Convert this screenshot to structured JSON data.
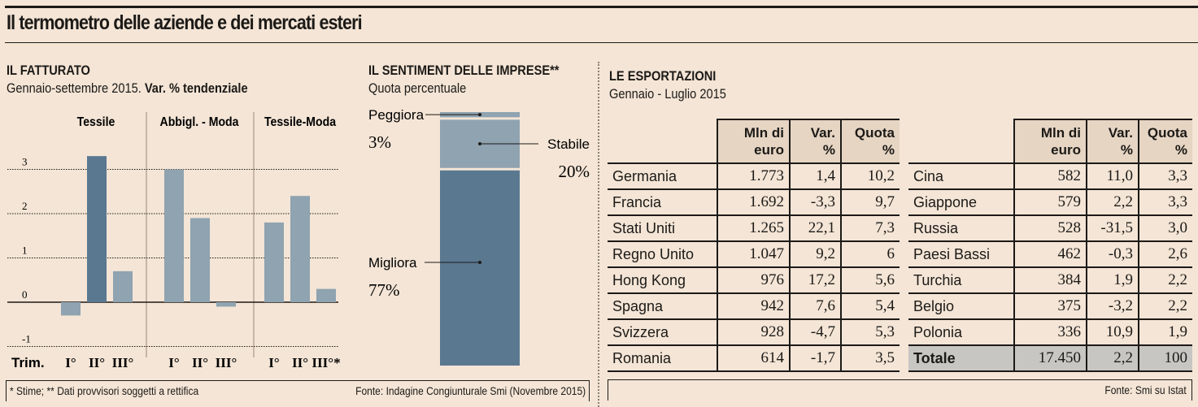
{
  "title": "Il termometro delle aziende e dei mercati esteri",
  "fatturato": {
    "heading": "IL FATTURATO",
    "subtitle_plain": "Gennaio-settembre 2015. ",
    "subtitle_bold": "Var. % tendenziale",
    "trim_label": "Trim."
  },
  "sentiment": {
    "heading": "IL SENTIMENT DELLE IMPRESE**",
    "subtitle": "Quota percentuale"
  },
  "esportazioni": {
    "heading": "LE ESPORTAZIONI",
    "subtitle": "Gennaio - Luglio 2015",
    "columns": [
      "Mln di euro",
      "Var. %",
      "Quota %"
    ],
    "col_lines": [
      [
        "Mln di",
        "euro"
      ],
      [
        "Var.",
        "%"
      ],
      [
        "Quota",
        "%"
      ]
    ],
    "left_rows": [
      {
        "country": "Germania",
        "mln": "1.773",
        "var": "1,4",
        "quota": "10,2"
      },
      {
        "country": "Francia",
        "mln": "1.692",
        "var": "-3,3",
        "quota": "9,7"
      },
      {
        "country": "Stati Uniti",
        "mln": "1.265",
        "var": "22,1",
        "quota": "7,3"
      },
      {
        "country": "Regno Unito",
        "mln": "1.047",
        "var": "9,2",
        "quota": "6"
      },
      {
        "country": "Hong Kong",
        "mln": "976",
        "var": "17,2",
        "quota": "5,6"
      },
      {
        "country": "Spagna",
        "mln": "942",
        "var": "7,6",
        "quota": "5,4"
      },
      {
        "country": "Svizzera",
        "mln": "928",
        "var": "-4,7",
        "quota": "5,3"
      },
      {
        "country": "Romania",
        "mln": "614",
        "var": "-1,7",
        "quota": "3,5"
      }
    ],
    "right_rows": [
      {
        "country": "Cina",
        "mln": "582",
        "var": "11,0",
        "quota": "3,3"
      },
      {
        "country": "Giappone",
        "mln": "579",
        "var": "2,2",
        "quota": "3,3"
      },
      {
        "country": "Russia",
        "mln": "528",
        "var": "-31,5",
        "quota": "3,0"
      },
      {
        "country": "Paesi Bassi",
        "mln": "462",
        "var": "-0,3",
        "quota": "2,6"
      },
      {
        "country": "Turchia",
        "mln": "384",
        "var": "1,9",
        "quota": "2,2"
      },
      {
        "country": "Belgio",
        "mln": "375",
        "var": "-3,2",
        "quota": "2,2"
      },
      {
        "country": "Polonia",
        "mln": "336",
        "var": "10,9",
        "quota": "1,9"
      }
    ],
    "total": {
      "country": "Totale",
      "mln": "17.450",
      "var": "2,2",
      "quota": "100"
    }
  },
  "footer_left": {
    "note": "* Stime; ** Dati provvisori soggetti a rettifica",
    "source": "Fonte: Indagine Congiunturale Smi (Novembre 2015)"
  },
  "footer_right": {
    "source": "Fonte: Smi su Istat"
  },
  "colors": {
    "background": "#f4e5d6",
    "bar_dark": "#5a7890",
    "bar_light": "#8fa3b0",
    "header_fill": "#e6d5c3",
    "total_fill": "#c8c6c3"
  },
  "chart_data": [
    {
      "type": "bar",
      "title": "IL FATTURATO",
      "subtitle": "Gennaio-settembre 2015. Var. % tendenziale",
      "xlabel": "Trim.",
      "ylabel": "",
      "ylim": [
        -1,
        3
      ],
      "yticks": [
        3,
        2,
        1,
        0,
        -1
      ],
      "grid": true,
      "groups": [
        {
          "name": "Tessile",
          "categories": [
            "I°",
            "II°",
            "III°"
          ],
          "values": [
            -0.3,
            3.3,
            0.7
          ],
          "highlight": [
            false,
            true,
            false
          ]
        },
        {
          "name": "Abbigl. - Moda",
          "categories": [
            "I°",
            "II°",
            "III°"
          ],
          "values": [
            3.0,
            1.9,
            -0.1
          ],
          "highlight": [
            false,
            false,
            false
          ]
        },
        {
          "name": "Tessile-Moda",
          "categories": [
            "I°",
            "II°",
            "III°*"
          ],
          "values": [
            1.8,
            2.4,
            0.3
          ],
          "highlight": [
            false,
            false,
            false
          ]
        }
      ]
    },
    {
      "type": "bar",
      "stacked": true,
      "title": "IL SENTIMENT DELLE IMPRESE**",
      "subtitle": "Quota percentuale",
      "segments": [
        {
          "label": "Peggiora",
          "value": 3,
          "display": "3%"
        },
        {
          "label": "Stabile",
          "value": 20,
          "display": "20%"
        },
        {
          "label": "Migliora",
          "value": 77,
          "display": "77%"
        }
      ]
    }
  ]
}
